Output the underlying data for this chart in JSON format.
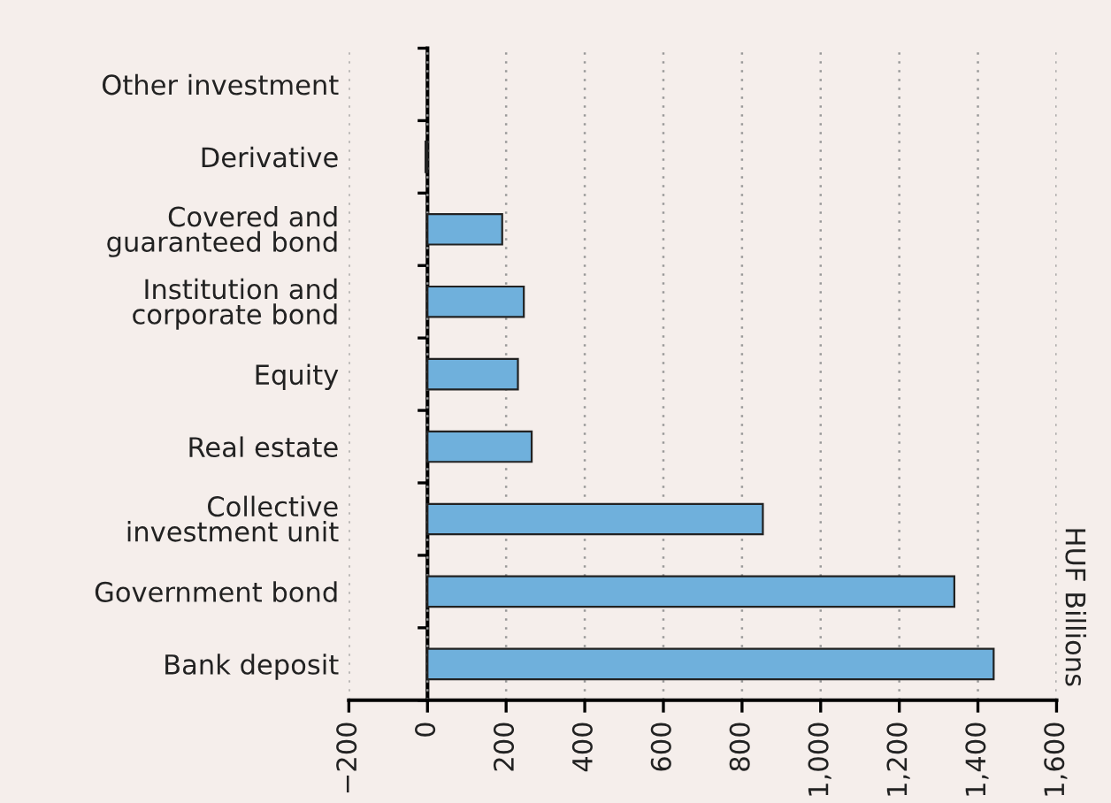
{
  "chart_data": {
    "type": "bar",
    "orientation": "horizontal",
    "ylabel": "HUF Billions",
    "categories": [
      "Other investment",
      "Derivative",
      "Covered and\nguaranteed bond",
      "Institution and\ncorporate bond",
      "Equity",
      "Real estate",
      "Collective\ninvestment unit",
      "Government bond",
      "Bank deposit"
    ],
    "values": [
      null,
      -5,
      190,
      245,
      230,
      265,
      853,
      1340,
      1440
    ],
    "color": "#6fb0dc",
    "xlim": [
      -200,
      1600
    ],
    "xticks": [
      {
        "value": -200,
        "label": "−200"
      },
      0,
      200,
      400,
      600,
      800,
      {
        "value": 1000,
        "label": "1,000"
      },
      {
        "value": 1200,
        "label": "1,200"
      },
      {
        "value": 1400,
        "label": "1,400"
      },
      {
        "value": 1600,
        "label": "1,600"
      }
    ],
    "grid": "x",
    "legend": false
  }
}
